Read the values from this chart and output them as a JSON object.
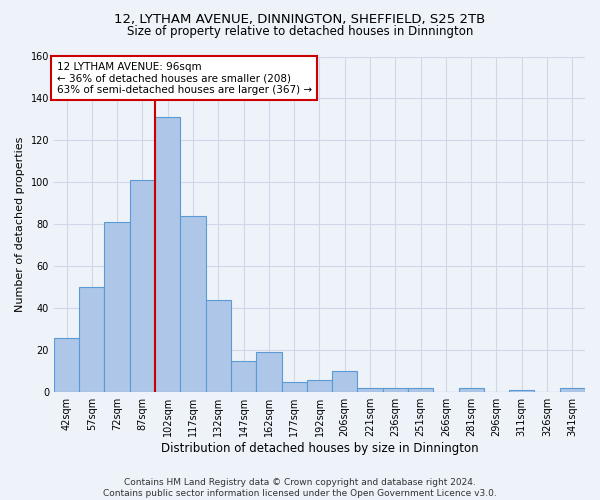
{
  "title_line1": "12, LYTHAM AVENUE, DINNINGTON, SHEFFIELD, S25 2TB",
  "title_line2": "Size of property relative to detached houses in Dinnington",
  "xlabel": "Distribution of detached houses by size in Dinnington",
  "ylabel": "Number of detached properties",
  "footnote": "Contains HM Land Registry data © Crown copyright and database right 2024.\nContains public sector information licensed under the Open Government Licence v3.0.",
  "categories": [
    "42sqm",
    "57sqm",
    "72sqm",
    "87sqm",
    "102sqm",
    "117sqm",
    "132sqm",
    "147sqm",
    "162sqm",
    "177sqm",
    "192sqm",
    "206sqm",
    "221sqm",
    "236sqm",
    "251sqm",
    "266sqm",
    "281sqm",
    "296sqm",
    "311sqm",
    "326sqm",
    "341sqm"
  ],
  "values": [
    26,
    50,
    81,
    101,
    131,
    84,
    44,
    15,
    19,
    5,
    6,
    10,
    2,
    2,
    2,
    0,
    2,
    0,
    1,
    0,
    2
  ],
  "bar_color": "#aec6e8",
  "bar_edge_color": "#5b9bd5",
  "bar_edge_width": 0.8,
  "vline_index": 4,
  "vline_color": "#cc0000",
  "annotation_text": "12 LYTHAM AVENUE: 96sqm\n← 36% of detached houses are smaller (208)\n63% of semi-detached houses are larger (367) →",
  "annotation_box_color": "#ffffff",
  "annotation_box_edge": "#cc0000",
  "annotation_fontsize": 7.5,
  "ylim": [
    0,
    160
  ],
  "yticks": [
    0,
    20,
    40,
    60,
    80,
    100,
    120,
    140,
    160
  ],
  "grid_color": "#d0d8e8",
  "background_color": "#eef2f9",
  "title1_fontsize": 9.5,
  "title2_fontsize": 8.5,
  "xlabel_fontsize": 8.5,
  "ylabel_fontsize": 8,
  "tick_fontsize": 7,
  "footnote_fontsize": 6.5
}
